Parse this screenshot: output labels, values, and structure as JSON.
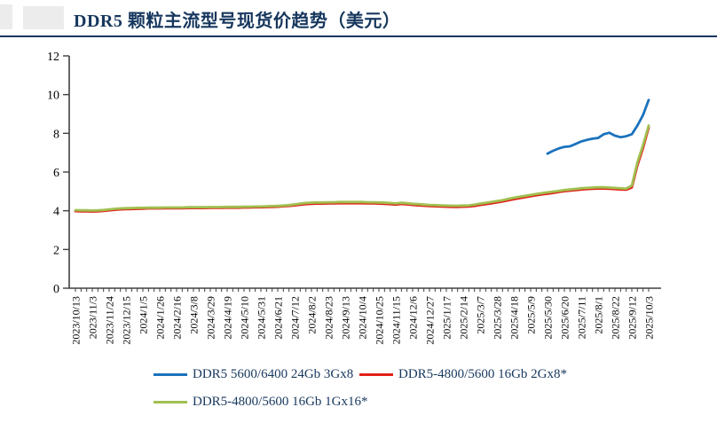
{
  "header": {
    "title": "DDR5 颗粒主流型号现货价趋势（美元）",
    "accent_color": "#17375e"
  },
  "logo_placeholder_color": "#ececec",
  "chart_data": {
    "type": "line",
    "title": "DDR5 颗粒主流型号现货价趋势（美元）",
    "ylabel": "",
    "xlabel": "",
    "ylim": [
      0,
      12
    ],
    "y_ticks": [
      0,
      2,
      4,
      6,
      8,
      10,
      12
    ],
    "grid": false,
    "legend_position": "bottom",
    "axis_color": "#404040",
    "tick_label_color": "#000000",
    "x_count": 103,
    "x_ticks_per_label": 3,
    "x_tick_labels": [
      "2023/10/13",
      "2023/11/3",
      "2023/11/24",
      "2023/12/15",
      "2024/1/5",
      "2024/1/26",
      "2024/2/16",
      "2024/3/8",
      "2024/3/29",
      "2024/4/19",
      "2024/5/10",
      "2024/5/31",
      "2024/6/21",
      "2024/7/12",
      "2024/8/2",
      "2024/8/23",
      "2024/9/13",
      "2024/10/4",
      "2024/10/25",
      "2024/11/15",
      "2024/12/6",
      "2024/12/27",
      "2025/1/17",
      "2025/2/14",
      "2025/3/7",
      "2025/3/28",
      "2025/4/18",
      "2025/5/9",
      "2025/5/30",
      "2025/6/20",
      "2025/7/11",
      "2025/8/1",
      "2025/8/22",
      "2025/9/12",
      "2025/10/3"
    ],
    "series": [
      {
        "name": "DDR5 5600/6400 24Gb 3Gx8",
        "color": "#1b72bc",
        "start_index": 84,
        "values": [
          6.95,
          7.1,
          7.22,
          7.3,
          7.33,
          7.45,
          7.58,
          7.66,
          7.72,
          7.76,
          7.95,
          8.03,
          7.88,
          7.8,
          7.85,
          7.95,
          8.4,
          8.95,
          9.72
        ]
      },
      {
        "name": "DDR5-4800/5600 16Gb 2Gx8*",
        "color": "#e2231a",
        "start_index": 0,
        "values": [
          3.98,
          3.97,
          3.97,
          3.96,
          3.97,
          3.99,
          4.02,
          4.05,
          4.07,
          4.08,
          4.09,
          4.1,
          4.11,
          4.12,
          4.12,
          4.12,
          4.13,
          4.13,
          4.13,
          4.13,
          4.14,
          4.14,
          4.14,
          4.14,
          4.15,
          4.15,
          4.15,
          4.16,
          4.16,
          4.16,
          4.17,
          4.17,
          4.18,
          4.18,
          4.19,
          4.2,
          4.21,
          4.23,
          4.25,
          4.28,
          4.31,
          4.34,
          4.36,
          4.37,
          4.37,
          4.38,
          4.38,
          4.39,
          4.39,
          4.39,
          4.39,
          4.39,
          4.38,
          4.38,
          4.37,
          4.36,
          4.34,
          4.32,
          4.35,
          4.33,
          4.3,
          4.28,
          4.26,
          4.24,
          4.23,
          4.22,
          4.21,
          4.2,
          4.2,
          4.21,
          4.22,
          4.25,
          4.3,
          4.34,
          4.38,
          4.43,
          4.48,
          4.54,
          4.6,
          4.65,
          4.7,
          4.75,
          4.8,
          4.84,
          4.88,
          4.92,
          4.97,
          5.01,
          5.04,
          5.07,
          5.1,
          5.12,
          5.14,
          5.15,
          5.15,
          5.14,
          5.12,
          5.1,
          5.09,
          5.2,
          6.35,
          7.25,
          8.3
        ]
      },
      {
        "name": "DDR5-4800/5600 16Gb 1Gx16*",
        "color": "#a0c050",
        "start_index": 0,
        "values": [
          4.03,
          4.02,
          4.02,
          4.01,
          4.02,
          4.04,
          4.07,
          4.1,
          4.12,
          4.13,
          4.14,
          4.15,
          4.15,
          4.16,
          4.16,
          4.16,
          4.17,
          4.17,
          4.17,
          4.17,
          4.18,
          4.18,
          4.18,
          4.18,
          4.19,
          4.19,
          4.19,
          4.2,
          4.2,
          4.2,
          4.21,
          4.21,
          4.22,
          4.22,
          4.23,
          4.24,
          4.25,
          4.27,
          4.29,
          4.33,
          4.37,
          4.4,
          4.42,
          4.43,
          4.43,
          4.44,
          4.44,
          4.45,
          4.45,
          4.45,
          4.45,
          4.45,
          4.44,
          4.44,
          4.43,
          4.42,
          4.4,
          4.38,
          4.41,
          4.39,
          4.36,
          4.34,
          4.32,
          4.3,
          4.29,
          4.28,
          4.27,
          4.26,
          4.26,
          4.27,
          4.28,
          4.32,
          4.37,
          4.41,
          4.45,
          4.5,
          4.55,
          4.61,
          4.67,
          4.72,
          4.77,
          4.82,
          4.87,
          4.91,
          4.95,
          4.99,
          5.03,
          5.07,
          5.1,
          5.13,
          5.16,
          5.18,
          5.2,
          5.21,
          5.21,
          5.2,
          5.18,
          5.16,
          5.15,
          5.3,
          6.5,
          7.4,
          8.4
        ]
      }
    ]
  },
  "legend": {
    "note": "legend labels mirror chart_data.series names"
  }
}
